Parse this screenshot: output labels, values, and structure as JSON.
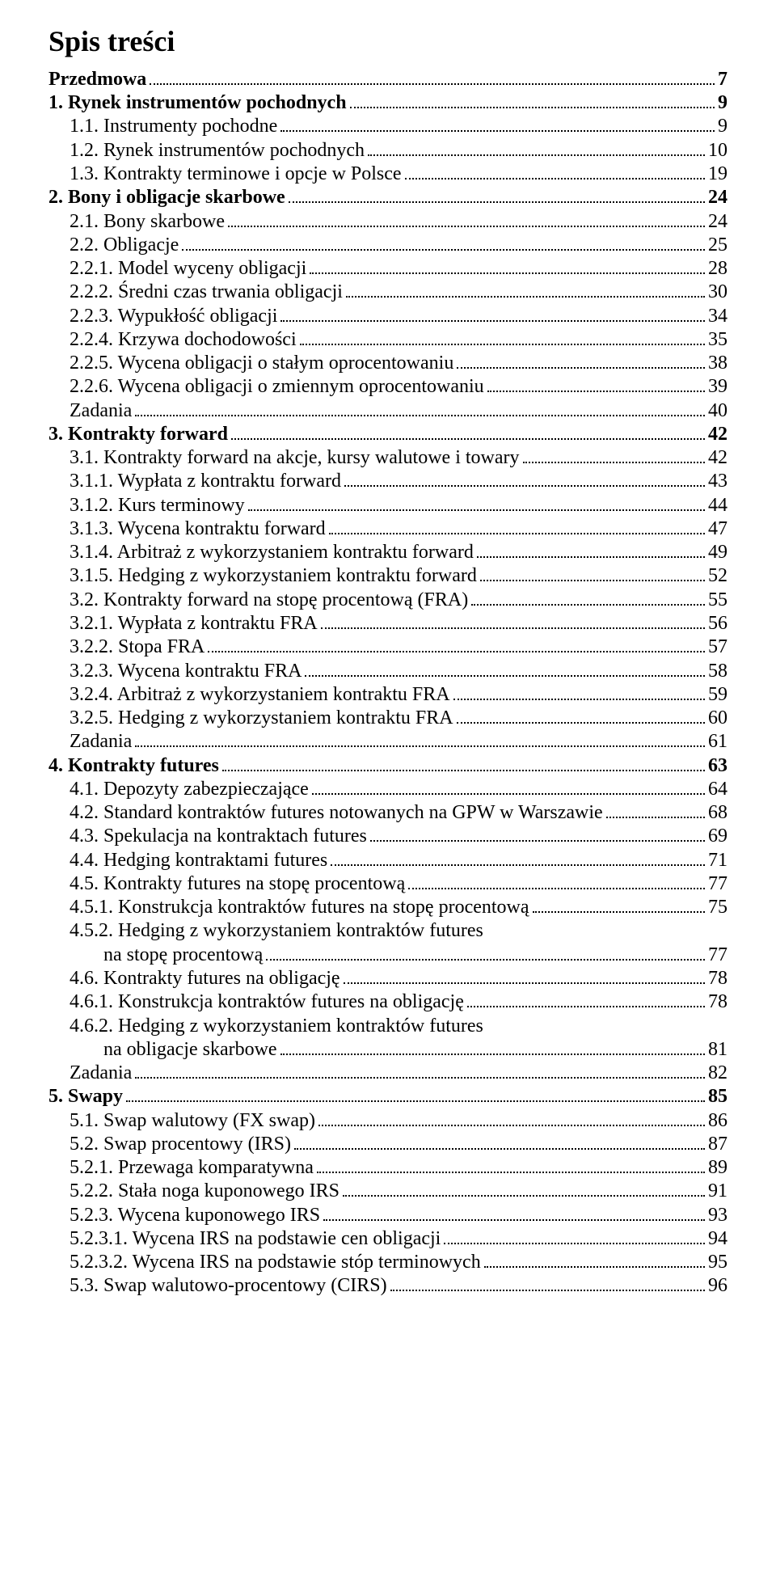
{
  "title": "Spis treści",
  "entries": [
    {
      "label": "Przedmowa",
      "page": "7",
      "bold": true,
      "indent": 0
    },
    {
      "label": "1. Rynek instrumentów pochodnych",
      "page": "9",
      "bold": true,
      "indent": 0
    },
    {
      "label": "1.1. Instrumenty pochodne",
      "page": "9",
      "bold": false,
      "indent": 1
    },
    {
      "label": "1.2. Rynek instrumentów pochodnych",
      "page": "10",
      "bold": false,
      "indent": 1
    },
    {
      "label": "1.3. Kontrakty terminowe i opcje w Polsce",
      "page": "19",
      "bold": false,
      "indent": 1
    },
    {
      "label": "2. Bony i obligacje skarbowe",
      "page": "24",
      "bold": true,
      "indent": 0
    },
    {
      "label": "2.1. Bony skarbowe",
      "page": "24",
      "bold": false,
      "indent": 1
    },
    {
      "label": "2.2. Obligacje",
      "page": "25",
      "bold": false,
      "indent": 1
    },
    {
      "label": "2.2.1. Model wyceny obligacji",
      "page": "28",
      "bold": false,
      "indent": 1
    },
    {
      "label": "2.2.2. Średni czas trwania obligacji",
      "page": "30",
      "bold": false,
      "indent": 1
    },
    {
      "label": "2.2.3. Wypukłość obligacji",
      "page": "34",
      "bold": false,
      "indent": 1
    },
    {
      "label": "2.2.4. Krzywa dochodowości",
      "page": "35",
      "bold": false,
      "indent": 1
    },
    {
      "label": "2.2.5. Wycena obligacji o stałym oprocentowaniu",
      "page": "38",
      "bold": false,
      "indent": 1
    },
    {
      "label": "2.2.6. Wycena obligacji o zmiennym oprocentowaniu",
      "page": "39",
      "bold": false,
      "indent": 1
    },
    {
      "label": "Zadania",
      "page": "40",
      "bold": false,
      "indent": 1
    },
    {
      "label": "3. Kontrakty forward",
      "page": "42",
      "bold": true,
      "indent": 0
    },
    {
      "label": "3.1. Kontrakty forward na akcje, kursy walutowe i towary",
      "page": "42",
      "bold": false,
      "indent": 1
    },
    {
      "label": "3.1.1. Wypłata z kontraktu forward",
      "page": "43",
      "bold": false,
      "indent": 1
    },
    {
      "label": "3.1.2. Kurs terminowy",
      "page": "44",
      "bold": false,
      "indent": 1
    },
    {
      "label": "3.1.3. Wycena kontraktu forward",
      "page": "47",
      "bold": false,
      "indent": 1
    },
    {
      "label": "3.1.4. Arbitraż z wykorzystaniem kontraktu forward",
      "page": "49",
      "bold": false,
      "indent": 1
    },
    {
      "label": "3.1.5. Hedging z wykorzystaniem kontraktu forward",
      "page": "52",
      "bold": false,
      "indent": 1
    },
    {
      "label": "3.2.  Kontrakty forward na stopę procentową (FRA)",
      "page": "55",
      "bold": false,
      "indent": 1
    },
    {
      "label": "3.2.1. Wypłata z kontraktu FRA",
      "page": "56",
      "bold": false,
      "indent": 1
    },
    {
      "label": "3.2.2. Stopa FRA",
      "page": "57",
      "bold": false,
      "indent": 1
    },
    {
      "label": "3.2.3. Wycena kontraktu FRA",
      "page": "58",
      "bold": false,
      "indent": 1
    },
    {
      "label": "3.2.4. Arbitraż z wykorzystaniem kontraktu FRA",
      "page": "59",
      "bold": false,
      "indent": 1
    },
    {
      "label": "3.2.5. Hedging z wykorzystaniem kontraktu FRA",
      "page": "60",
      "bold": false,
      "indent": 1
    },
    {
      "label": "Zadania",
      "page": "61",
      "bold": false,
      "indent": 1
    },
    {
      "label": "4. Kontrakty futures",
      "page": "63",
      "bold": true,
      "indent": 0
    },
    {
      "label": "4.1. Depozyty zabezpieczające",
      "page": "64",
      "bold": false,
      "indent": 1
    },
    {
      "label": "4.2. Standard kontraktów futures notowanych na GPW w Warszawie",
      "page": "68",
      "bold": false,
      "indent": 1
    },
    {
      "label": "4.3. Spekulacja na kontraktach futures",
      "page": "69",
      "bold": false,
      "indent": 1
    },
    {
      "label": "4.4. Hedging kontraktami futures",
      "page": "71",
      "bold": false,
      "indent": 1
    },
    {
      "label": "4.5.  Kontrakty futures na stopę procentową",
      "page": "77",
      "bold": false,
      "indent": 1
    },
    {
      "label": "4.5.1. Konstrukcja kontraktów futures na stopę procentową",
      "page": "75",
      "bold": false,
      "indent": 1
    },
    {
      "label": "4.5.2. Hedging z wykorzystaniem kontraktów futures",
      "page": "",
      "bold": false,
      "indent": 1,
      "noDots": true
    },
    {
      "label": "na stopę procentową",
      "page": "77",
      "bold": false,
      "indent": 2
    },
    {
      "label": "4.6.  Kontrakty futures na obligację",
      "page": "78",
      "bold": false,
      "indent": 1
    },
    {
      "label": "4.6.1. Konstrukcja kontraktów futures na obligację",
      "page": "78",
      "bold": false,
      "indent": 1
    },
    {
      "label": "4.6.2. Hedging z wykorzystaniem kontraktów futures",
      "page": "",
      "bold": false,
      "indent": 1,
      "noDots": true
    },
    {
      "label": "na obligacje skarbowe",
      "page": "81",
      "bold": false,
      "indent": 2
    },
    {
      "label": "Zadania",
      "page": "82",
      "bold": false,
      "indent": 1
    },
    {
      "label": "5. Swapy",
      "page": "85",
      "bold": true,
      "indent": 0
    },
    {
      "label": "5.1.  Swap walutowy (FX swap)",
      "page": "86",
      "bold": false,
      "indent": 1
    },
    {
      "label": "5.2.  Swap procentowy (IRS)",
      "page": "87",
      "bold": false,
      "indent": 1
    },
    {
      "label": "5.2.1.  Przewaga komparatywna",
      "page": "89",
      "bold": false,
      "indent": 1
    },
    {
      "label": "5.2.2.  Stała noga kuponowego IRS",
      "page": "91",
      "bold": false,
      "indent": 1
    },
    {
      "label": "5.2.3.  Wycena kuponowego IRS",
      "page": "93",
      "bold": false,
      "indent": 1
    },
    {
      "label": "5.2.3.1.  Wycena IRS na podstawie cen obligacji",
      "page": "94",
      "bold": false,
      "indent": 1
    },
    {
      "label": "5.2.3.2.  Wycena IRS na podstawie stóp terminowych",
      "page": "95",
      "bold": false,
      "indent": 1
    },
    {
      "label": "5.3.  Swap walutowo-procentowy (CIRS)",
      "page": "96",
      "bold": false,
      "indent": 1
    }
  ]
}
